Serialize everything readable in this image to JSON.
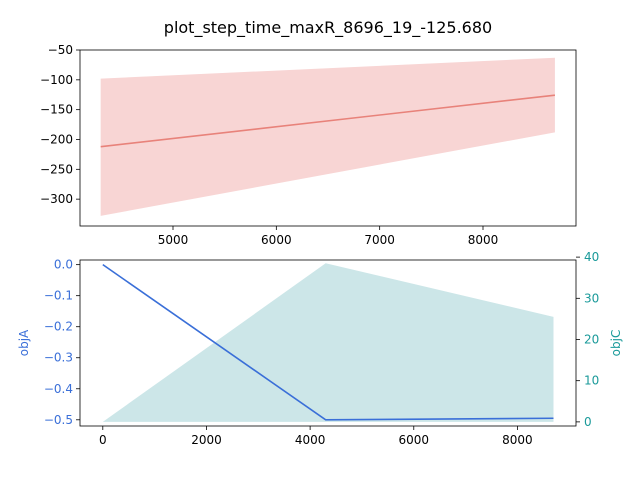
{
  "figure": {
    "title": "plot_step_time_maxR_8696_19_-125.680"
  },
  "colors": {
    "top_line": "#e8827a",
    "top_band": "#f8d5d4",
    "objA": "#3a6fd8",
    "objC_fill": "#cce6e8",
    "objA_label": "#3a6fd8",
    "objC_label": "#1a9a9a"
  },
  "chart_data": [
    {
      "type": "line",
      "x": [
        4300,
        8696
      ],
      "series": [
        {
          "values": [
            -212,
            -125.68
          ],
          "lower": [
            -328,
            -188
          ],
          "upper": [
            -98,
            -63
          ]
        }
      ],
      "xlim": [
        4100,
        8900
      ],
      "ylim": [
        -345,
        -50
      ],
      "xticks": [
        5000,
        6000,
        7000,
        8000
      ],
      "xtick_labels": [
        "5000",
        "6000",
        "7000",
        "8000"
      ],
      "yticks": [
        -50,
        -100,
        -150,
        -200,
        -250,
        -300
      ],
      "ytick_labels": [
        "−50",
        "−100",
        "−150",
        "−200",
        "−250",
        "−300"
      ]
    },
    {
      "type": "area",
      "x": [
        0,
        4300,
        8696
      ],
      "series": [
        {
          "name": "objA",
          "values": [
            0.0,
            -0.5,
            -0.495
          ]
        },
        {
          "name": "objC",
          "values": [
            0,
            38.5,
            25.5
          ]
        }
      ],
      "xlim": [
        -440,
        9130
      ],
      "ylim_left": [
        -0.52,
        0.015
      ],
      "ylim_right": [
        -1.0,
        39.3
      ],
      "xticks": [
        0,
        2000,
        4000,
        6000,
        8000
      ],
      "xtick_labels": [
        "0",
        "2000",
        "4000",
        "6000",
        "8000"
      ],
      "yticks_left": [
        0.0,
        -0.1,
        -0.2,
        -0.3,
        -0.4,
        -0.5
      ],
      "ytick_labels_left": [
        "0.0",
        "−0.1",
        "−0.2",
        "−0.3",
        "−0.4",
        "−0.5"
      ],
      "yticks_right": [
        0,
        10,
        20,
        30,
        40
      ],
      "ytick_labels_right": [
        "0",
        "10",
        "20",
        "30",
        "40"
      ],
      "ylabel_left": "objA",
      "ylabel_right": "objC"
    }
  ]
}
